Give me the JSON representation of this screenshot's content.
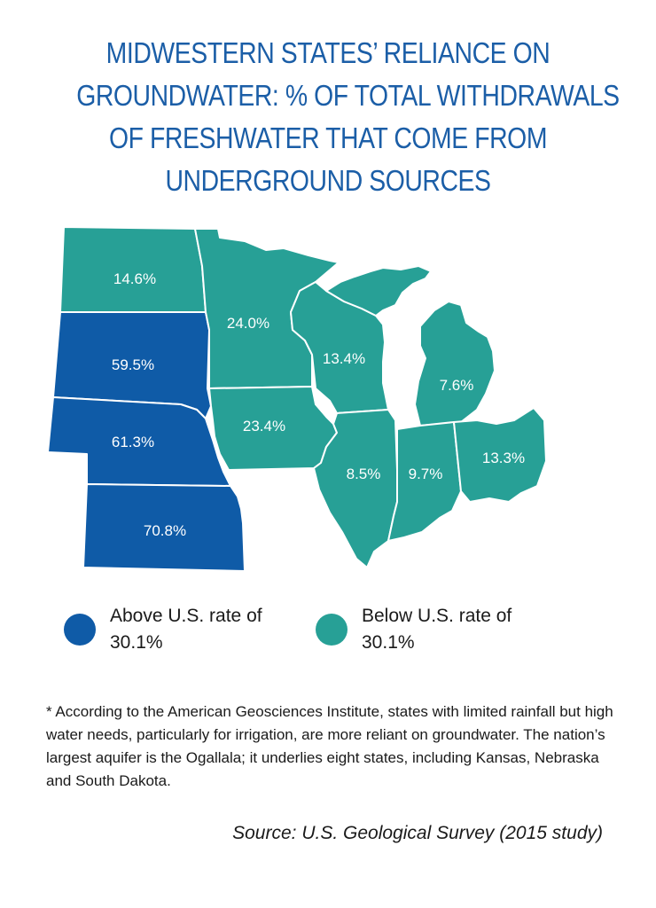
{
  "title_lines": [
    "MIDWESTERN STATES’ RELIANCE ON",
    "GROUNDWATER: % OF TOTAL WITHDRAWALS",
    "OF FRESHWATER THAT COME FROM",
    "UNDERGROUND SOURCES"
  ],
  "colors": {
    "above": "#0f5ba7",
    "below": "#27a096",
    "title": "#1b5ea7"
  },
  "states": [
    {
      "name": "North Dakota",
      "value": "14.6%",
      "group": "below"
    },
    {
      "name": "South Dakota",
      "value": "59.5%",
      "group": "above"
    },
    {
      "name": "Nebraska",
      "value": "61.3%",
      "group": "above"
    },
    {
      "name": "Kansas",
      "value": "70.8%",
      "group": "above"
    },
    {
      "name": "Minnesota",
      "value": "24.0%",
      "group": "below"
    },
    {
      "name": "Iowa",
      "value": "23.4%",
      "group": "below"
    },
    {
      "name": "Wisconsin",
      "value": "13.4%",
      "group": "below"
    },
    {
      "name": "Michigan",
      "value": "7.6%",
      "group": "below"
    },
    {
      "name": "Illinois",
      "value": "8.5%",
      "group": "below"
    },
    {
      "name": "Indiana",
      "value": "9.7%",
      "group": "below"
    },
    {
      "name": "Ohio",
      "value": "13.3%",
      "group": "below"
    }
  ],
  "legend": {
    "above_label": "Above U.S. rate of 30.1%",
    "below_label": "Below U.S. rate of 30.1%"
  },
  "note": "* According to the American Geosciences Institute, states with limited rainfall but high water needs, particularly for irrigation, are more reliant on groundwater. The nation’s largest aquifer is the Ogallala; it underlies eight states, including Kansas, Nebraska and South Dakota.",
  "source": "Source: U.S. Geological Survey (2015 study)"
}
